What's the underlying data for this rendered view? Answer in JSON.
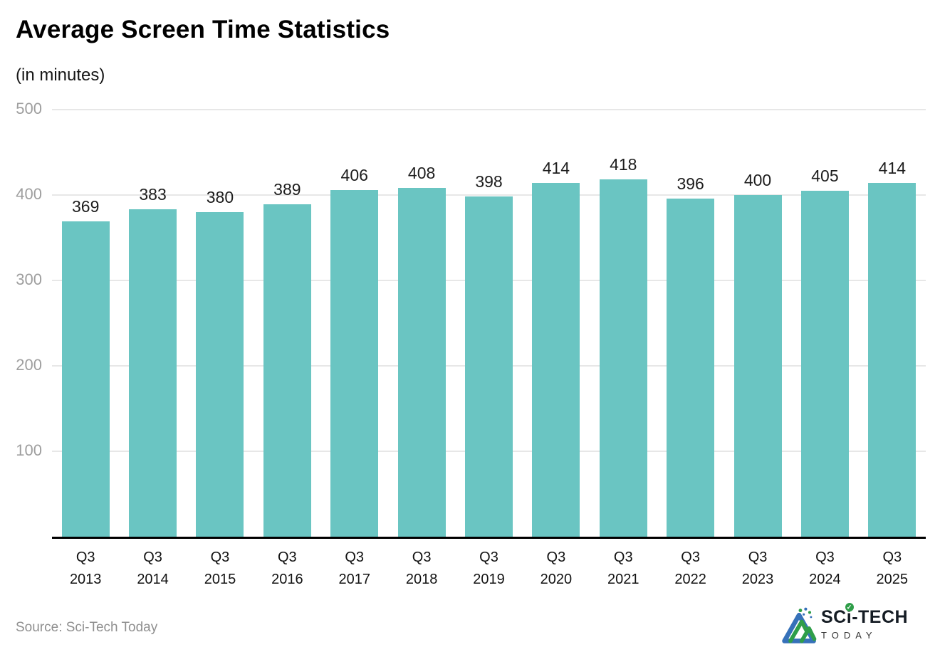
{
  "header": {
    "title": "Average Screen Time Statistics",
    "subtitle": "(in minutes)"
  },
  "chart_data": {
    "type": "bar",
    "title": "Average Screen Time Statistics",
    "subtitle": "(in minutes)",
    "categories": [
      "Q3 2013",
      "Q3 2014",
      "Q3 2015",
      "Q3 2016",
      "Q3 2017",
      "Q3 2018",
      "Q3 2019",
      "Q3 2020",
      "Q3 2021",
      "Q3 2022",
      "Q3 2023",
      "Q3 2024",
      "Q3 2025"
    ],
    "values": [
      369,
      383,
      380,
      389,
      406,
      408,
      398,
      414,
      418,
      396,
      400,
      405,
      414
    ],
    "xlabel": "",
    "ylabel": "",
    "ylim": [
      0,
      500
    ],
    "yticks": [
      100,
      200,
      300,
      400,
      500
    ],
    "grid": "horizontal",
    "legend": "none",
    "value_labels": true,
    "bar_color": "#6AC5C2"
  },
  "colors": {
    "bar": "#6AC5C2",
    "gridline": "#e7e7e7",
    "axis_line": "#000000",
    "y_tick_label": "#9e9e9e",
    "value_label": "#1d1d1d",
    "x_tick_label": "#121212",
    "source_text": "#8f8f8f",
    "logo_blue": "#3671b9",
    "logo_green": "#2f9e49",
    "logo_dark": "#151c24"
  },
  "footer": {
    "source_text": "Source: Sci-Tech Today",
    "logo": {
      "part1": "SC",
      "part2": "i",
      "part3": "-TECH",
      "check": "✓",
      "line2": "TODAY"
    }
  }
}
